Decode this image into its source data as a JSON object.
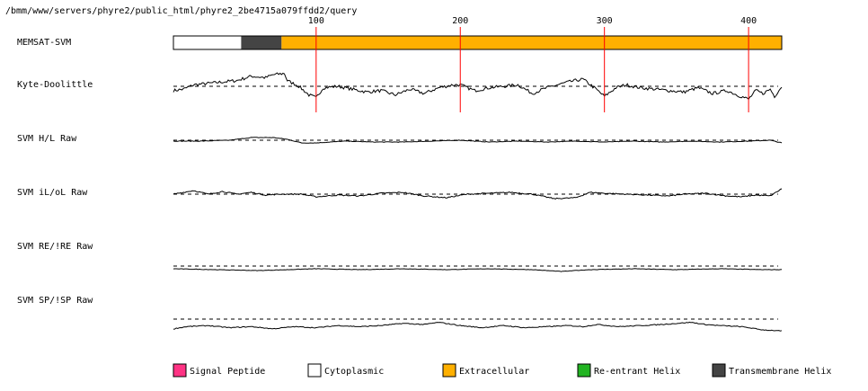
{
  "path": "/bmm/www/servers/phyre2/public_html/phyre2_2be4715a079ffdd2/query",
  "chart_data": {
    "type": "line",
    "sequence_length": 423,
    "xticks": [
      100,
      200,
      300,
      400
    ],
    "memsat": {
      "label": "MEMSAT-SVM",
      "segments": [
        {
          "start": 1,
          "end": 47,
          "type": "Cytoplasmic"
        },
        {
          "start": 48,
          "end": 75,
          "type": "Transmembrane Helix"
        },
        {
          "start": 76,
          "end": 423,
          "type": "Extracellular"
        }
      ]
    },
    "tracks": [
      {
        "label": "Kyte-Doolittle",
        "anchors": [
          [
            1,
            -0.3
          ],
          [
            8,
            -0.2
          ],
          [
            15,
            0.1
          ],
          [
            25,
            0.2
          ],
          [
            35,
            0.3
          ],
          [
            45,
            0.4
          ],
          [
            55,
            0.7
          ],
          [
            65,
            0.6
          ],
          [
            70,
            0.8
          ],
          [
            78,
            0.9
          ],
          [
            80,
            0.4
          ],
          [
            88,
            0.0
          ],
          [
            95,
            -0.6
          ],
          [
            100,
            -0.8
          ],
          [
            105,
            -0.1
          ],
          [
            115,
            0.0
          ],
          [
            125,
            -0.2
          ],
          [
            135,
            -0.4
          ],
          [
            145,
            -0.3
          ],
          [
            155,
            -0.6
          ],
          [
            165,
            -0.2
          ],
          [
            175,
            -0.5
          ],
          [
            185,
            -0.1
          ],
          [
            195,
            0.1
          ],
          [
            200,
            0.1
          ],
          [
            210,
            -0.3
          ],
          [
            220,
            -0.1
          ],
          [
            230,
            0.0
          ],
          [
            240,
            0.1
          ],
          [
            250,
            -0.5
          ],
          [
            260,
            -0.1
          ],
          [
            275,
            0.3
          ],
          [
            285,
            0.5
          ],
          [
            293,
            -0.1
          ],
          [
            300,
            -0.7
          ],
          [
            308,
            -0.1
          ],
          [
            315,
            0.1
          ],
          [
            325,
            -0.1
          ],
          [
            335,
            -0.2
          ],
          [
            345,
            -0.3
          ],
          [
            355,
            -0.4
          ],
          [
            365,
            -0.1
          ],
          [
            375,
            -0.5
          ],
          [
            385,
            -0.3
          ],
          [
            392,
            -0.6
          ],
          [
            400,
            -0.9
          ],
          [
            405,
            -0.3
          ],
          [
            410,
            -0.5
          ],
          [
            415,
            -0.2
          ],
          [
            418,
            -0.7
          ],
          [
            423,
            0.0
          ]
        ]
      },
      {
        "label": "SVM H/L Raw",
        "anchors": [
          [
            1,
            -0.1
          ],
          [
            20,
            -0.1
          ],
          [
            40,
            0.0
          ],
          [
            55,
            0.3
          ],
          [
            70,
            0.3
          ],
          [
            80,
            0.1
          ],
          [
            90,
            -0.3
          ],
          [
            100,
            -0.3
          ],
          [
            120,
            -0.1
          ],
          [
            140,
            -0.2
          ],
          [
            160,
            -0.2
          ],
          [
            180,
            -0.1
          ],
          [
            200,
            0.0
          ],
          [
            220,
            -0.2
          ],
          [
            240,
            -0.1
          ],
          [
            260,
            -0.2
          ],
          [
            280,
            -0.1
          ],
          [
            300,
            -0.2
          ],
          [
            320,
            -0.1
          ],
          [
            340,
            -0.2
          ],
          [
            360,
            -0.1
          ],
          [
            380,
            -0.2
          ],
          [
            400,
            -0.1
          ],
          [
            415,
            0.0
          ],
          [
            423,
            -0.3
          ]
        ]
      },
      {
        "label": "SVM iL/oL Raw",
        "anchors": [
          [
            1,
            0.0
          ],
          [
            15,
            0.4
          ],
          [
            25,
            0.0
          ],
          [
            35,
            0.3
          ],
          [
            45,
            0.0
          ],
          [
            55,
            0.2
          ],
          [
            65,
            -0.1
          ],
          [
            75,
            0.0
          ],
          [
            90,
            0.0
          ],
          [
            100,
            -0.3
          ],
          [
            115,
            -0.1
          ],
          [
            130,
            -0.2
          ],
          [
            145,
            0.1
          ],
          [
            160,
            0.2
          ],
          [
            175,
            -0.2
          ],
          [
            190,
            -0.4
          ],
          [
            205,
            0.0
          ],
          [
            220,
            0.1
          ],
          [
            235,
            0.2
          ],
          [
            250,
            0.0
          ],
          [
            265,
            -0.5
          ],
          [
            280,
            -0.4
          ],
          [
            290,
            0.2
          ],
          [
            300,
            0.1
          ],
          [
            315,
            0.0
          ],
          [
            330,
            -0.1
          ],
          [
            345,
            -0.2
          ],
          [
            355,
            0.0
          ],
          [
            370,
            0.1
          ],
          [
            385,
            -0.2
          ],
          [
            395,
            -0.3
          ],
          [
            405,
            -0.1
          ],
          [
            415,
            -0.2
          ],
          [
            423,
            0.6
          ]
        ]
      },
      {
        "label": "SVM RE/!RE Raw",
        "anchors": [
          [
            1,
            -0.3
          ],
          [
            30,
            -0.4
          ],
          [
            60,
            -0.5
          ],
          [
            80,
            -0.4
          ],
          [
            100,
            -0.3
          ],
          [
            130,
            -0.4
          ],
          [
            160,
            -0.3
          ],
          [
            190,
            -0.4
          ],
          [
            220,
            -0.3
          ],
          [
            250,
            -0.4
          ],
          [
            270,
            -0.6
          ],
          [
            290,
            -0.4
          ],
          [
            320,
            -0.3
          ],
          [
            350,
            -0.4
          ],
          [
            380,
            -0.3
          ],
          [
            410,
            -0.4
          ],
          [
            423,
            -0.4
          ]
        ]
      },
      {
        "label": "SVM SP/!SP Raw",
        "anchors": [
          [
            1,
            -0.9
          ],
          [
            10,
            -0.7
          ],
          [
            25,
            -0.6
          ],
          [
            40,
            -0.8
          ],
          [
            55,
            -0.7
          ],
          [
            70,
            -0.9
          ],
          [
            85,
            -0.7
          ],
          [
            100,
            -0.8
          ],
          [
            115,
            -0.6
          ],
          [
            130,
            -0.7
          ],
          [
            145,
            -0.6
          ],
          [
            160,
            -0.4
          ],
          [
            175,
            -0.5
          ],
          [
            185,
            -0.3
          ],
          [
            200,
            -0.6
          ],
          [
            215,
            -0.8
          ],
          [
            230,
            -0.6
          ],
          [
            245,
            -0.8
          ],
          [
            260,
            -0.7
          ],
          [
            275,
            -0.6
          ],
          [
            285,
            -0.7
          ],
          [
            295,
            -0.5
          ],
          [
            310,
            -0.7
          ],
          [
            325,
            -0.6
          ],
          [
            340,
            -0.5
          ],
          [
            350,
            -0.4
          ],
          [
            360,
            -0.3
          ],
          [
            370,
            -0.5
          ],
          [
            380,
            -0.6
          ],
          [
            395,
            -0.7
          ],
          [
            410,
            -1.0
          ],
          [
            423,
            -1.1
          ]
        ]
      }
    ],
    "legend": [
      {
        "label": "Signal Peptide",
        "color": "#ff3384"
      },
      {
        "label": "Cytoplasmic",
        "color": "#ffffff"
      },
      {
        "label": "Extracellular",
        "color": "#ffb000"
      },
      {
        "label": "Re-entrant Helix",
        "color": "#22b422"
      },
      {
        "label": "Transmembrane Helix",
        "color": "#444444"
      }
    ],
    "colors": {
      "tick_line": "#ff0000",
      "trace": "#000000",
      "baseline": "#000000"
    }
  }
}
